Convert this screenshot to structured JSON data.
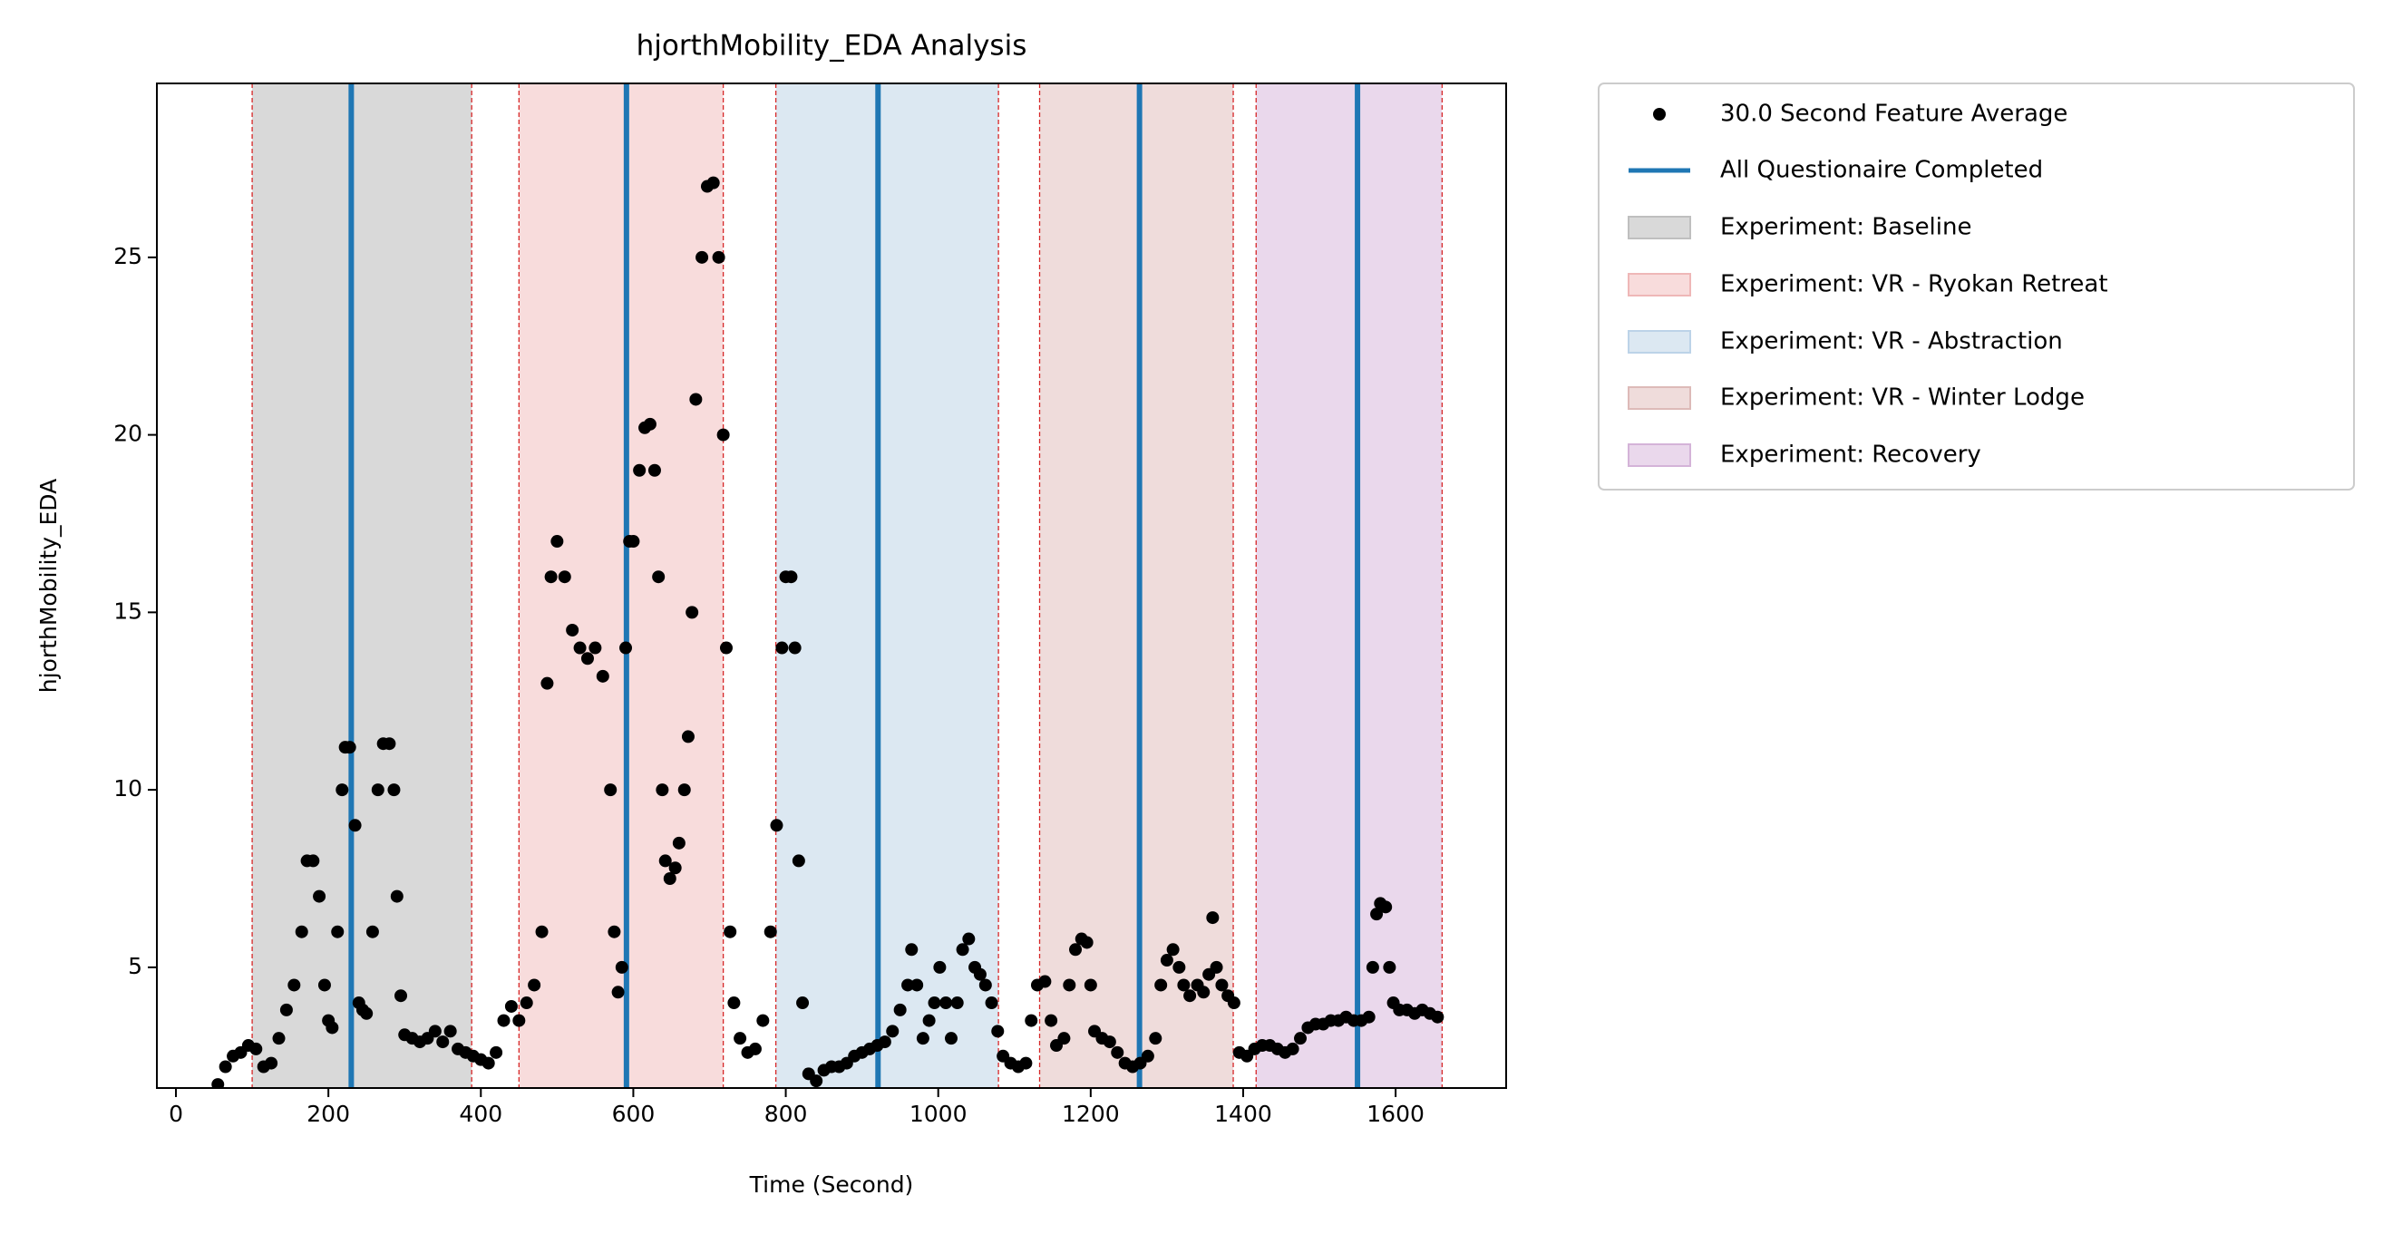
{
  "chart_data": {
    "type": "scatter",
    "title": "hjorthMobility_EDA Analysis",
    "x_label": "Time (Second)",
    "y_label": "hjorthMobility_EDA",
    "xlim": [
      -25,
      1745
    ],
    "ylim": [
      1.6,
      29.9
    ],
    "xticks": [
      0,
      200,
      400,
      600,
      800,
      1000,
      1200,
      1400,
      1600
    ],
    "yticks": [
      5,
      10,
      15,
      20,
      25
    ],
    "legend": "outside-upper-right",
    "series": [
      {
        "name": "30.0 Second Feature Average",
        "color": "#000000",
        "x": [
          55,
          65,
          75,
          85,
          95,
          105,
          115,
          125,
          135,
          145,
          155,
          165,
          172,
          180,
          188,
          195,
          200,
          205,
          212,
          218,
          222,
          228,
          235,
          240,
          245,
          250,
          258,
          265,
          272,
          280,
          286,
          290,
          295,
          300,
          310,
          320,
          330,
          340,
          350,
          360,
          370,
          380,
          390,
          400,
          410,
          420,
          430,
          440,
          450,
          460,
          470,
          480,
          487,
          492,
          500,
          510,
          520,
          530,
          540,
          550,
          560,
          570,
          575,
          580,
          585,
          590,
          595,
          600,
          608,
          615,
          622,
          628,
          633,
          638,
          642,
          648,
          655,
          660,
          667,
          672,
          677,
          682,
          690,
          697,
          705,
          712,
          718,
          722,
          727,
          732,
          740,
          750,
          760,
          770,
          780,
          788,
          795,
          800,
          807,
          812,
          817,
          822,
          830,
          840,
          850,
          860,
          870,
          880,
          890,
          900,
          910,
          920,
          930,
          940,
          950,
          960,
          965,
          972,
          980,
          988,
          995,
          1002,
          1010,
          1017,
          1025,
          1032,
          1040,
          1048,
          1055,
          1062,
          1070,
          1078,
          1085,
          1095,
          1105,
          1115,
          1122,
          1130,
          1140,
          1148,
          1155,
          1165,
          1172,
          1180,
          1188,
          1195,
          1200,
          1205,
          1215,
          1225,
          1235,
          1245,
          1255,
          1265,
          1275,
          1285,
          1292,
          1300,
          1308,
          1316,
          1322,
          1330,
          1340,
          1348,
          1355,
          1360,
          1365,
          1372,
          1380,
          1388,
          1395,
          1405,
          1415,
          1425,
          1435,
          1445,
          1455,
          1465,
          1475,
          1485,
          1495,
          1505,
          1515,
          1525,
          1535,
          1545,
          1555,
          1565,
          1570,
          1575,
          1580,
          1587,
          1592,
          1597,
          1605,
          1615,
          1625,
          1635,
          1645,
          1655
        ],
        "values": [
          1.7,
          2.2,
          2.5,
          2.6,
          2.8,
          2.7,
          2.2,
          2.3,
          3.0,
          3.8,
          4.5,
          6,
          8.0,
          8.0,
          7,
          4.5,
          3.5,
          3.3,
          6,
          10,
          11.2,
          11.2,
          9,
          4,
          3.8,
          3.7,
          6,
          10,
          11.3,
          11.3,
          10,
          7,
          4.2,
          3.1,
          3.0,
          2.9,
          3.0,
          3.2,
          2.9,
          3.2,
          2.7,
          2.6,
          2.5,
          2.4,
          2.3,
          2.6,
          3.5,
          3.9,
          3.5,
          4.0,
          4.5,
          6,
          13,
          16,
          17,
          16,
          14.5,
          14,
          13.7,
          14,
          13.2,
          10,
          6,
          4.3,
          5,
          14,
          17,
          17,
          19,
          20.2,
          20.3,
          19,
          16,
          10,
          8,
          7.5,
          7.8,
          8.5,
          10,
          11.5,
          15,
          21,
          25,
          27,
          27.1,
          25,
          20,
          14,
          6,
          4,
          3,
          2.6,
          2.7,
          3.5,
          6,
          9,
          14,
          16,
          16,
          14,
          8,
          4,
          2,
          1.8,
          2.1,
          2.2,
          2.2,
          2.3,
          2.5,
          2.6,
          2.7,
          2.8,
          2.9,
          3.2,
          3.8,
          4.5,
          5.5,
          4.5,
          3.0,
          3.5,
          4,
          5,
          4,
          3,
          4,
          5.5,
          5.8,
          5,
          4.8,
          4.5,
          4,
          3.2,
          2.5,
          2.3,
          2.2,
          2.3,
          3.5,
          4.5,
          4.6,
          3.5,
          2.8,
          3.0,
          4.5,
          5.5,
          5.8,
          5.7,
          4.5,
          3.2,
          3.0,
          2.9,
          2.6,
          2.3,
          2.2,
          2.3,
          2.5,
          3.0,
          4.5,
          5.2,
          5.5,
          5.0,
          4.5,
          4.2,
          4.5,
          4.3,
          4.8,
          6.4,
          5.0,
          4.5,
          4.2,
          4.0,
          2.6,
          2.5,
          2.7,
          2.8,
          2.8,
          2.7,
          2.6,
          2.7,
          3.0,
          3.3,
          3.4,
          3.4,
          3.5,
          3.5,
          3.6,
          3.5,
          3.5,
          3.6,
          5,
          6.5,
          6.8,
          6.7,
          5,
          4,
          3.8,
          3.8,
          3.7,
          3.8,
          3.7,
          3.6
        ]
      }
    ],
    "vlines": {
      "name": "All Questionaire Completed",
      "color": "#1f77b4",
      "x": [
        230,
        591,
        921,
        1264,
        1550
      ]
    },
    "regions": [
      {
        "name": "Experiment: Baseline",
        "start": 100,
        "end": 388,
        "color": "#d9d9d9",
        "edge": "#bfbfbf"
      },
      {
        "name": "Experiment: VR - Ryokan Retreat",
        "start": 450,
        "end": 718,
        "color": "#f8dcdc",
        "edge": "#efb7b7"
      },
      {
        "name": "Experiment: VR - Abstraction",
        "start": 787,
        "end": 1079,
        "color": "#dce8f2",
        "edge": "#bcd3e8"
      },
      {
        "name": "Experiment: VR - Winter Lodge",
        "start": 1133,
        "end": 1387,
        "color": "#efdcdb",
        "edge": "#ddbab8"
      },
      {
        "name": "Experiment: Recovery",
        "start": 1417,
        "end": 1661,
        "color": "#ead8ec",
        "edge": "#d4b3d8"
      }
    ],
    "region_edge_color": "#d62728"
  }
}
